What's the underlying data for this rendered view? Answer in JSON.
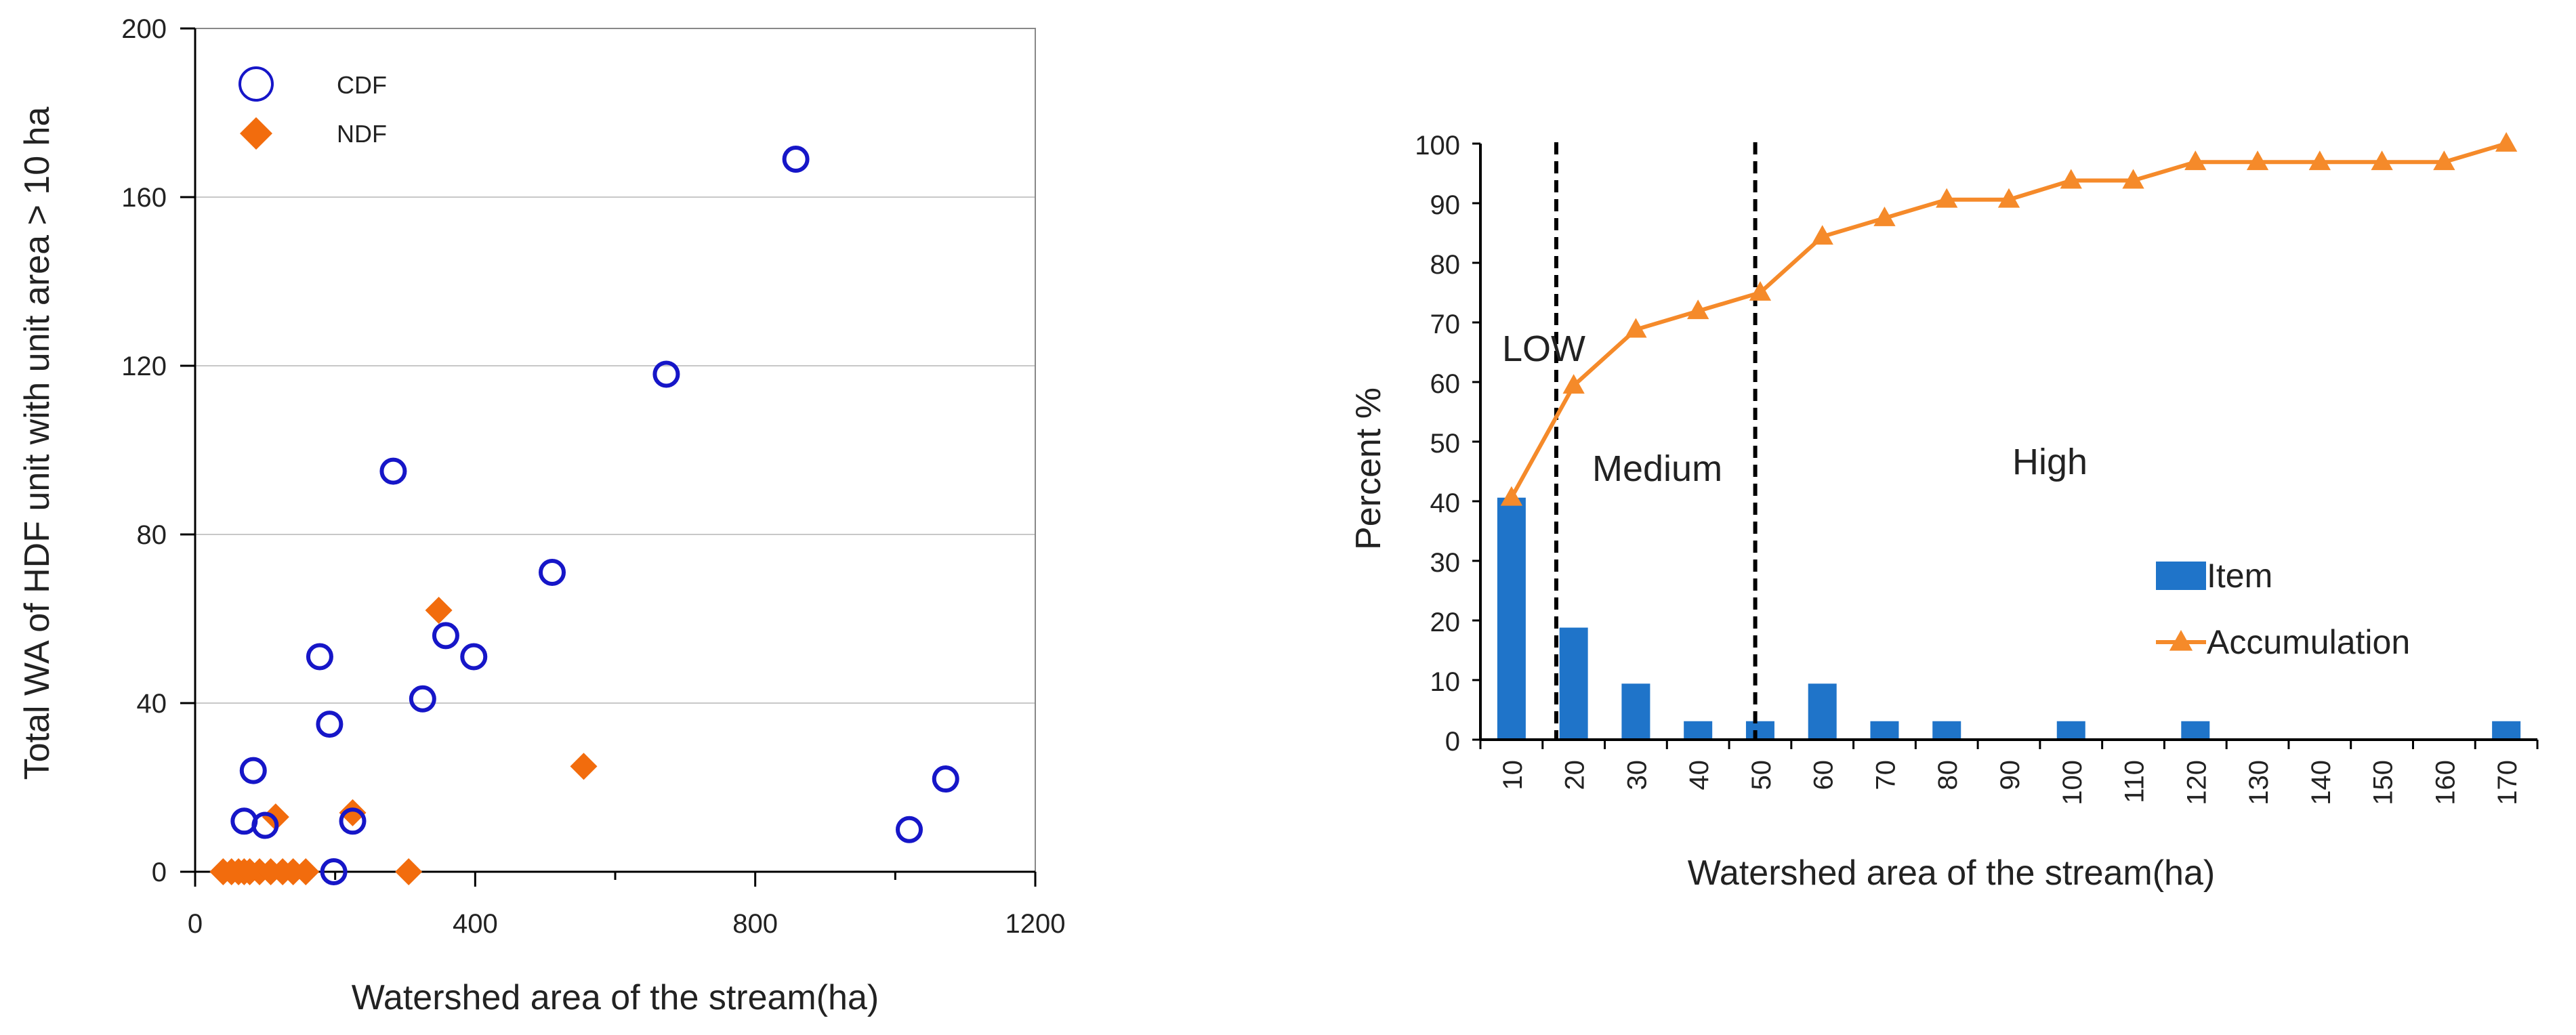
{
  "colors": {
    "cdf": "#1616c8",
    "ndf": "#f26c0d",
    "item": "#1f74c9",
    "accumulation": "#f58a2a",
    "grid": "#c8c8c8",
    "axis": "#000000"
  },
  "chart_data": [
    {
      "type": "scatter",
      "title": "",
      "xlabel": "Watershed area of the stream(ha)",
      "ylabel": "Total WA of HDF unit with unit area  > 10 ha",
      "xlim": [
        0,
        1200
      ],
      "ylim": [
        0,
        200
      ],
      "xticks": [
        "0",
        "400",
        "800",
        "1200"
      ],
      "yticks": [
        "0",
        "40",
        "80",
        "120",
        "160",
        "200"
      ],
      "grid": "horizontal",
      "legend_position": "top-left",
      "series": [
        {
          "name": "CDF",
          "marker": "open-circle",
          "points": [
            [
              70,
              12
            ],
            [
              83,
              24
            ],
            [
              100,
              11
            ],
            [
              178,
              51
            ],
            [
              192,
              35
            ],
            [
              198,
              0
            ],
            [
              225,
              12
            ],
            [
              283,
              95
            ],
            [
              325,
              41
            ],
            [
              358,
              56
            ],
            [
              398,
              51
            ],
            [
              510,
              71
            ],
            [
              673,
              118
            ],
            [
              858,
              169
            ],
            [
              1020,
              10
            ],
            [
              1072,
              22
            ]
          ]
        },
        {
          "name": "NDF",
          "marker": "filled-diamond",
          "points": [
            [
              40,
              0
            ],
            [
              52,
              0
            ],
            [
              62,
              0
            ],
            [
              70,
              0
            ],
            [
              78,
              0
            ],
            [
              92,
              0
            ],
            [
              108,
              0
            ],
            [
              115,
              13
            ],
            [
              125,
              0
            ],
            [
              140,
              0
            ],
            [
              158,
              0
            ],
            [
              225,
              14
            ],
            [
              305,
              0
            ],
            [
              348,
              62
            ],
            [
              555,
              25
            ]
          ]
        }
      ]
    },
    {
      "type": "bar",
      "title": "",
      "xlabel": "Watershed area of the stream(ha)",
      "ylabel": "Percent %",
      "ylim": [
        0,
        100
      ],
      "yticks": [
        "0",
        "10",
        "20",
        "30",
        "40",
        "50",
        "60",
        "70",
        "80",
        "90",
        "100"
      ],
      "categories": [
        "10",
        "20",
        "30",
        "40",
        "50",
        "60",
        "70",
        "80",
        "90",
        "100",
        "110",
        "120",
        "130",
        "140",
        "150",
        "160",
        "170"
      ],
      "grid": false,
      "legend_position": "bottom-right",
      "series": [
        {
          "name": "Item",
          "type": "bar",
          "values": [
            40.6,
            18.8,
            9.4,
            3.1,
            3.1,
            9.4,
            3.1,
            3.1,
            0,
            3.1,
            0,
            3.1,
            0,
            0,
            0,
            0,
            3.1
          ]
        },
        {
          "name": "Accumulation",
          "type": "line",
          "marker": "triangle",
          "values": [
            40.6,
            59.4,
            68.8,
            71.9,
            75.0,
            84.4,
            87.5,
            90.6,
            90.6,
            93.8,
            93.8,
            96.9,
            96.9,
            96.9,
            96.9,
            96.9,
            100
          ]
        }
      ],
      "regions": [
        {
          "label": "LOW"
        },
        {
          "label": "Medium"
        },
        {
          "label": "High"
        }
      ]
    }
  ]
}
